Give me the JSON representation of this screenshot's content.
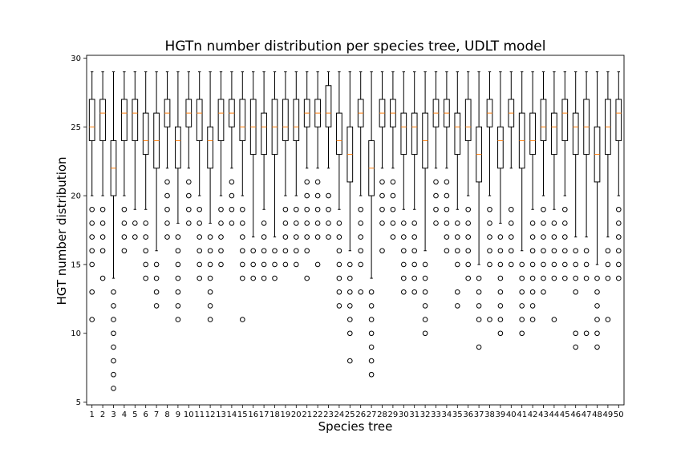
{
  "chart_data": {
    "type": "box",
    "title": "HGTn number distribution per species tree, UDLT model",
    "xlabel": "Species tree",
    "ylabel": "HGT number distribution",
    "ylim": [
      4.8,
      30.2
    ],
    "yticks": [
      5,
      10,
      15,
      20,
      25,
      30
    ],
    "grid": false,
    "colors": {
      "box": "#000000",
      "median": "#ff7f0e",
      "background": "#ffffff"
    },
    "categories": [
      "1",
      "2",
      "3",
      "4",
      "5",
      "6",
      "7",
      "8",
      "9",
      "10",
      "11",
      "12",
      "13",
      "14",
      "15",
      "16",
      "17",
      "18",
      "19",
      "20",
      "21",
      "22",
      "23",
      "24",
      "25",
      "26",
      "27",
      "28",
      "29",
      "30",
      "31",
      "32",
      "33",
      "34",
      "35",
      "36",
      "37",
      "38",
      "39",
      "40",
      "41",
      "42",
      "43",
      "44",
      "45",
      "46",
      "47",
      "48",
      "49",
      "50"
    ],
    "boxes": [
      {
        "q1": 24,
        "med": 25,
        "q3": 27,
        "wlo": 20,
        "whi": 29,
        "fliers": [
          11,
          13,
          15,
          16,
          17,
          18,
          19
        ]
      },
      {
        "q1": 24,
        "med": 26,
        "q3": 27,
        "wlo": 20,
        "whi": 29,
        "fliers": [
          14,
          16,
          17,
          18,
          19
        ]
      },
      {
        "q1": 20,
        "med": 22,
        "q3": 24,
        "wlo": 14,
        "whi": 29,
        "fliers": [
          6,
          7,
          8,
          9,
          10,
          11,
          12,
          13
        ]
      },
      {
        "q1": 24,
        "med": 26,
        "q3": 27,
        "wlo": 20,
        "whi": 29,
        "fliers": [
          16,
          17,
          18,
          19
        ]
      },
      {
        "q1": 24,
        "med": 26,
        "q3": 27,
        "wlo": 19,
        "whi": 29,
        "fliers": [
          17,
          18
        ]
      },
      {
        "q1": 23,
        "med": 24,
        "q3": 26,
        "wlo": 19,
        "whi": 29,
        "fliers": [
          14,
          15,
          16,
          17,
          18
        ]
      },
      {
        "q1": 22,
        "med": 24,
        "q3": 26,
        "wlo": 16,
        "whi": 29,
        "fliers": [
          12,
          13,
          14,
          15
        ]
      },
      {
        "q1": 25,
        "med": 26,
        "q3": 27,
        "wlo": 22,
        "whi": 29,
        "fliers": [
          17,
          18,
          19,
          20,
          21
        ]
      },
      {
        "q1": 22,
        "med": 24,
        "q3": 25,
        "wlo": 18,
        "whi": 29,
        "fliers": [
          11,
          12,
          13,
          14,
          15,
          16,
          17
        ]
      },
      {
        "q1": 25,
        "med": 26,
        "q3": 27,
        "wlo": 22,
        "whi": 29,
        "fliers": [
          18,
          19,
          20,
          21
        ]
      },
      {
        "q1": 24,
        "med": 26,
        "q3": 27,
        "wlo": 20,
        "whi": 29,
        "fliers": [
          14,
          15,
          16,
          17,
          18,
          19
        ]
      },
      {
        "q1": 22,
        "med": 24,
        "q3": 25,
        "wlo": 18,
        "whi": 29,
        "fliers": [
          11,
          12,
          13,
          14,
          15,
          16,
          17
        ]
      },
      {
        "q1": 24,
        "med": 26,
        "q3": 27,
        "wlo": 20,
        "whi": 29,
        "fliers": [
          15,
          16,
          17,
          18,
          19
        ]
      },
      {
        "q1": 25,
        "med": 26,
        "q3": 27,
        "wlo": 22,
        "whi": 29,
        "fliers": [
          18,
          19,
          20,
          21
        ]
      },
      {
        "q1": 24,
        "med": 25,
        "q3": 27,
        "wlo": 20,
        "whi": 29,
        "fliers": [
          11,
          14,
          15,
          16,
          17,
          18,
          19
        ]
      },
      {
        "q1": 23,
        "med": 25,
        "q3": 27,
        "wlo": 17,
        "whi": 29,
        "fliers": [
          14,
          15,
          16
        ]
      },
      {
        "q1": 23,
        "med": 25,
        "q3": 26,
        "wlo": 19,
        "whi": 29,
        "fliers": [
          14,
          15,
          16,
          17,
          18
        ]
      },
      {
        "q1": 23,
        "med": 25,
        "q3": 27,
        "wlo": 17,
        "whi": 29,
        "fliers": [
          14,
          15,
          16
        ]
      },
      {
        "q1": 24,
        "med": 25,
        "q3": 27,
        "wlo": 20,
        "whi": 29,
        "fliers": [
          15,
          16,
          17,
          18,
          19
        ]
      },
      {
        "q1": 24,
        "med": 25,
        "q3": 27,
        "wlo": 20,
        "whi": 29,
        "fliers": [
          15,
          16,
          17,
          18,
          19
        ]
      },
      {
        "q1": 25,
        "med": 26,
        "q3": 27,
        "wlo": 22,
        "whi": 29,
        "fliers": [
          14,
          16,
          17,
          18,
          19,
          20,
          21
        ]
      },
      {
        "q1": 25,
        "med": 26,
        "q3": 27,
        "wlo": 22,
        "whi": 29,
        "fliers": [
          15,
          17,
          18,
          19,
          20,
          21
        ]
      },
      {
        "q1": 25,
        "med": 26,
        "q3": 28,
        "wlo": 22,
        "whi": 29,
        "fliers": [
          17,
          18,
          19,
          20
        ]
      },
      {
        "q1": 23,
        "med": 24,
        "q3": 26,
        "wlo": 19,
        "whi": 29,
        "fliers": [
          12,
          13,
          14,
          15,
          16,
          17,
          18
        ]
      },
      {
        "q1": 21,
        "med": 23,
        "q3": 25,
        "wlo": 16,
        "whi": 29,
        "fliers": [
          8,
          10,
          11,
          12,
          13,
          14,
          15
        ]
      },
      {
        "q1": 25,
        "med": 26,
        "q3": 27,
        "wlo": 20,
        "whi": 29,
        "fliers": [
          13,
          15,
          16,
          17,
          18,
          19
        ]
      },
      {
        "q1": 20,
        "med": 22,
        "q3": 24,
        "wlo": 14,
        "whi": 29,
        "fliers": [
          7,
          8,
          9,
          10,
          11,
          12,
          13
        ]
      },
      {
        "q1": 25,
        "med": 26,
        "q3": 27,
        "wlo": 22,
        "whi": 29,
        "fliers": [
          16,
          18,
          19,
          20,
          21
        ]
      },
      {
        "q1": 25,
        "med": 26,
        "q3": 27,
        "wlo": 22,
        "whi": 29,
        "fliers": [
          17,
          18,
          19,
          20,
          21
        ]
      },
      {
        "q1": 23,
        "med": 25,
        "q3": 26,
        "wlo": 19,
        "whi": 29,
        "fliers": [
          13,
          14,
          15,
          16,
          17,
          18
        ]
      },
      {
        "q1": 23,
        "med": 25,
        "q3": 26,
        "wlo": 19,
        "whi": 29,
        "fliers": [
          13,
          14,
          15,
          16,
          17,
          18
        ]
      },
      {
        "q1": 22,
        "med": 24,
        "q3": 26,
        "wlo": 16,
        "whi": 29,
        "fliers": [
          10,
          11,
          12,
          13,
          14,
          15
        ]
      },
      {
        "q1": 25,
        "med": 26,
        "q3": 27,
        "wlo": 22,
        "whi": 29,
        "fliers": [
          18,
          19,
          20,
          21
        ]
      },
      {
        "q1": 25,
        "med": 26,
        "q3": 27,
        "wlo": 22,
        "whi": 29,
        "fliers": [
          16,
          17,
          18,
          19,
          20,
          21
        ]
      },
      {
        "q1": 23,
        "med": 25,
        "q3": 26,
        "wlo": 19,
        "whi": 29,
        "fliers": [
          12,
          13,
          15,
          16,
          17,
          18
        ]
      },
      {
        "q1": 24,
        "med": 25,
        "q3": 27,
        "wlo": 20,
        "whi": 29,
        "fliers": [
          14,
          15,
          16,
          17,
          18,
          19
        ]
      },
      {
        "q1": 21,
        "med": 23,
        "q3": 25,
        "wlo": 15,
        "whi": 29,
        "fliers": [
          9,
          11,
          12,
          13,
          14
        ]
      },
      {
        "q1": 25,
        "med": 26,
        "q3": 27,
        "wlo": 20,
        "whi": 29,
        "fliers": [
          11,
          15,
          16,
          17,
          18,
          19
        ]
      },
      {
        "q1": 22,
        "med": 24,
        "q3": 25,
        "wlo": 18,
        "whi": 29,
        "fliers": [
          10,
          11,
          12,
          13,
          14,
          15,
          16,
          17
        ]
      },
      {
        "q1": 25,
        "med": 26,
        "q3": 27,
        "wlo": 22,
        "whi": 29,
        "fliers": [
          15,
          16,
          17,
          18,
          19
        ]
      },
      {
        "q1": 22,
        "med": 24,
        "q3": 26,
        "wlo": 16,
        "whi": 29,
        "fliers": [
          10,
          11,
          12,
          13,
          14,
          15
        ]
      },
      {
        "q1": 23,
        "med": 24,
        "q3": 26,
        "wlo": 19,
        "whi": 29,
        "fliers": [
          11,
          12,
          13,
          14,
          15,
          16,
          17,
          18
        ]
      },
      {
        "q1": 24,
        "med": 25,
        "q3": 27,
        "wlo": 20,
        "whi": 29,
        "fliers": [
          13,
          14,
          15,
          16,
          17,
          18,
          19
        ]
      },
      {
        "q1": 23,
        "med": 25,
        "q3": 26,
        "wlo": 19,
        "whi": 29,
        "fliers": [
          11,
          14,
          15,
          16,
          17,
          18
        ]
      },
      {
        "q1": 24,
        "med": 26,
        "q3": 27,
        "wlo": 20,
        "whi": 29,
        "fliers": [
          14,
          15,
          16,
          17,
          18,
          19
        ]
      },
      {
        "q1": 23,
        "med": 25,
        "q3": 26,
        "wlo": 17,
        "whi": 29,
        "fliers": [
          9,
          10,
          13,
          14,
          15,
          16
        ]
      },
      {
        "q1": 23,
        "med": 25,
        "q3": 27,
        "wlo": 17,
        "whi": 29,
        "fliers": [
          10,
          14,
          15,
          16
        ]
      },
      {
        "q1": 21,
        "med": 23,
        "q3": 25,
        "wlo": 15,
        "whi": 29,
        "fliers": [
          9,
          10,
          11,
          12,
          13,
          14
        ]
      },
      {
        "q1": 23,
        "med": 25,
        "q3": 27,
        "wlo": 17,
        "whi": 29,
        "fliers": [
          11,
          14,
          15,
          16
        ]
      },
      {
        "q1": 24,
        "med": 26,
        "q3": 27,
        "wlo": 20,
        "whi": 29,
        "fliers": [
          14,
          15,
          16,
          17,
          18,
          19
        ]
      }
    ]
  }
}
